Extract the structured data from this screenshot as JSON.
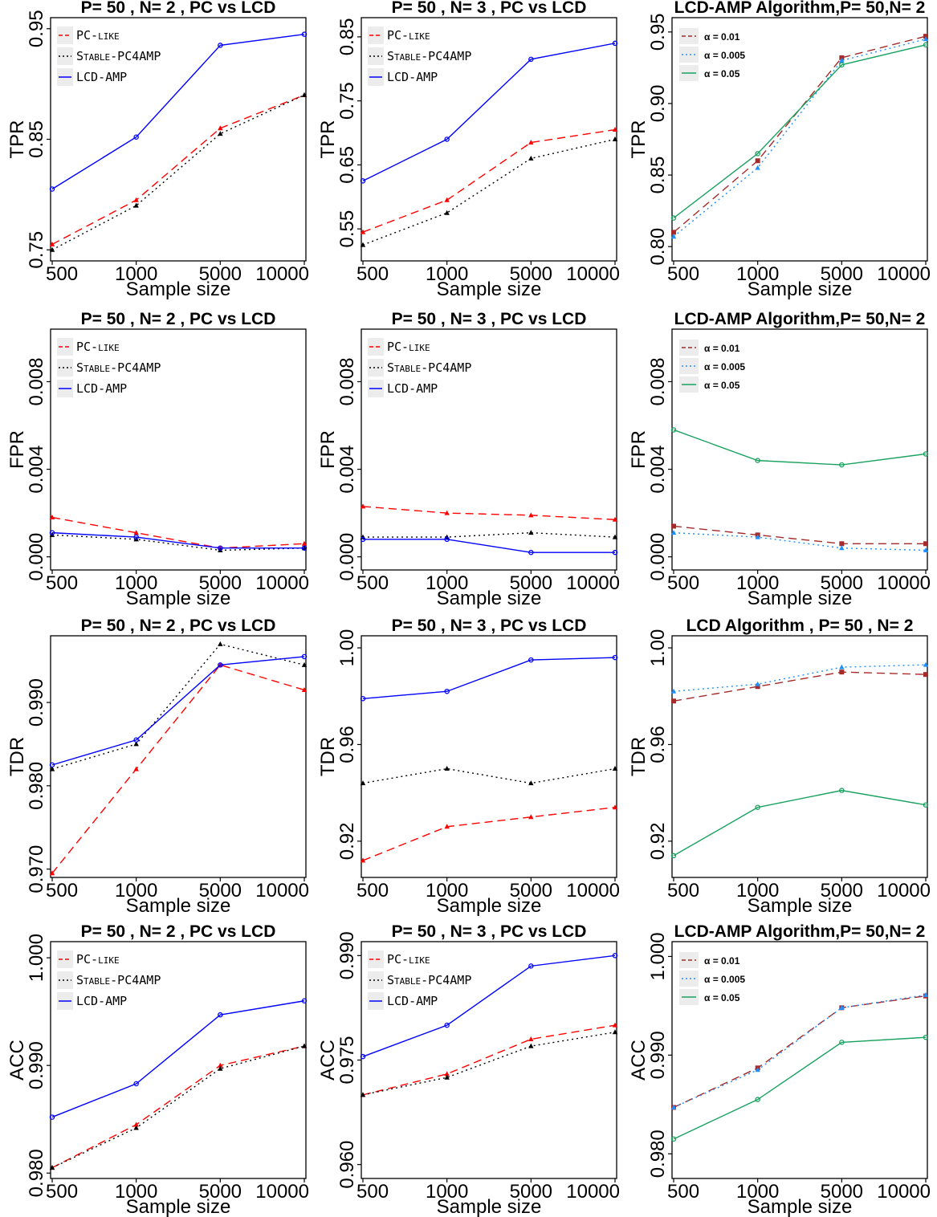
{
  "chart_data": [
    {
      "type": "line",
      "title": "P= 50 , N= 2 , PC vs LCD",
      "xlabel": "Sample size",
      "ylabel": "TPR",
      "categories": [
        "500",
        "1000",
        "5000",
        "10000"
      ],
      "ylim": [
        0.74,
        0.96
      ],
      "yticks": [
        "0.75",
        "0.85",
        "0.95"
      ],
      "legend": "top-left",
      "legend_style": "small-caps",
      "series": [
        {
          "name": "PC-like",
          "color": "#ff0000",
          "dash": "dashed",
          "marker": "triangle",
          "values": [
            0.755,
            0.795,
            0.86,
            0.89
          ]
        },
        {
          "name": "Stable-PC4AMP",
          "color": "#000000",
          "dash": "dotted",
          "marker": "triangle",
          "values": [
            0.75,
            0.79,
            0.855,
            0.89
          ]
        },
        {
          "name": "LCD-AMP",
          "color": "#0000ff",
          "dash": "solid",
          "marker": "circle",
          "values": [
            0.805,
            0.852,
            0.935,
            0.945
          ]
        }
      ]
    },
    {
      "type": "line",
      "title": "P= 50 , N= 3 , PC vs LCD",
      "xlabel": "Sample size",
      "ylabel": "TPR",
      "categories": [
        "500",
        "1000",
        "5000",
        "10000"
      ],
      "ylim": [
        0.5,
        0.88
      ],
      "yticks": [
        "0.55",
        "0.65",
        "0.75",
        "0.85"
      ],
      "legend": "top-left",
      "legend_style": "small-caps",
      "series": [
        {
          "name": "PC-like",
          "color": "#ff0000",
          "dash": "dashed",
          "marker": "triangle",
          "values": [
            0.545,
            0.595,
            0.685,
            0.705
          ]
        },
        {
          "name": "Stable-PC4AMP",
          "color": "#000000",
          "dash": "dotted",
          "marker": "triangle",
          "values": [
            0.525,
            0.575,
            0.66,
            0.69
          ]
        },
        {
          "name": "LCD-AMP",
          "color": "#0000ff",
          "dash": "solid",
          "marker": "circle",
          "values": [
            0.625,
            0.69,
            0.815,
            0.84
          ]
        }
      ]
    },
    {
      "type": "line",
      "title": "LCD-AMP Algorithm,P= 50,N= 2",
      "xlabel": "Sample size",
      "ylabel": "TPR",
      "categories": [
        "500",
        "1000",
        "5000",
        "10000"
      ],
      "ylim": [
        0.79,
        0.96
      ],
      "yticks": [
        "0.80",
        "0.85",
        "0.90",
        "0.95"
      ],
      "legend": "top-left",
      "legend_style": "alpha",
      "series": [
        {
          "name": "α = 0.01",
          "color": "#a52a2a",
          "dash": "dashed",
          "marker": "square",
          "values": [
            0.81,
            0.86,
            0.932,
            0.947
          ]
        },
        {
          "name": "α = 0.005",
          "color": "#1e90ff",
          "dash": "dotted",
          "marker": "triangle",
          "values": [
            0.807,
            0.855,
            0.93,
            0.945
          ]
        },
        {
          "name": "α = 0.05",
          "color": "#1aa260",
          "dash": "solid",
          "marker": "circle",
          "values": [
            0.82,
            0.865,
            0.927,
            0.941
          ]
        }
      ]
    },
    {
      "type": "line",
      "title": "P= 50 , N= 2 , PC vs LCD",
      "xlabel": "Sample size",
      "ylabel": "FPR",
      "categories": [
        "500",
        "1000",
        "5000",
        "10000"
      ],
      "ylim": [
        -0.0006,
        0.0104
      ],
      "yticks": [
        "0.000",
        "0.004",
        "0.008"
      ],
      "legend": "top-left",
      "legend_style": "small-caps",
      "series": [
        {
          "name": "PC-like",
          "color": "#ff0000",
          "dash": "dashed",
          "marker": "triangle",
          "values": [
            0.0018,
            0.0011,
            0.0004,
            0.0006
          ]
        },
        {
          "name": "Stable-PC4AMP",
          "color": "#000000",
          "dash": "dotted",
          "marker": "triangle",
          "values": [
            0.001,
            0.0008,
            0.0003,
            0.0004
          ]
        },
        {
          "name": "LCD-AMP",
          "color": "#0000ff",
          "dash": "solid",
          "marker": "circle",
          "values": [
            0.0011,
            0.0009,
            0.0004,
            0.0004
          ]
        }
      ]
    },
    {
      "type": "line",
      "title": "P= 50 , N= 3 , PC vs LCD",
      "xlabel": "Sample size",
      "ylabel": "FPR",
      "categories": [
        "500",
        "1000",
        "5000",
        "10000"
      ],
      "ylim": [
        -0.0006,
        0.0104
      ],
      "yticks": [
        "0.000",
        "0.004",
        "0.008"
      ],
      "legend": "top-left",
      "legend_style": "small-caps",
      "series": [
        {
          "name": "PC-like",
          "color": "#ff0000",
          "dash": "dashed",
          "marker": "triangle",
          "values": [
            0.0023,
            0.002,
            0.0019,
            0.0017
          ]
        },
        {
          "name": "Stable-PC4AMP",
          "color": "#000000",
          "dash": "dotted",
          "marker": "triangle",
          "values": [
            0.0009,
            0.0009,
            0.0011,
            0.0009
          ]
        },
        {
          "name": "LCD-AMP",
          "color": "#0000ff",
          "dash": "solid",
          "marker": "circle",
          "values": [
            0.0008,
            0.0008,
            0.0002,
            0.0002
          ]
        }
      ]
    },
    {
      "type": "line",
      "title": "LCD-AMP Algorithm,P= 50,N= 2",
      "xlabel": "Sample size",
      "ylabel": "FPR",
      "categories": [
        "500",
        "1000",
        "5000",
        "10000"
      ],
      "ylim": [
        -0.0006,
        0.0104
      ],
      "yticks": [
        "0.000",
        "0.004",
        "0.008"
      ],
      "legend": "top-left",
      "legend_style": "alpha",
      "series": [
        {
          "name": "α = 0.01",
          "color": "#a52a2a",
          "dash": "dashed",
          "marker": "square",
          "values": [
            0.0014,
            0.001,
            0.0006,
            0.0006
          ]
        },
        {
          "name": "α = 0.005",
          "color": "#1e90ff",
          "dash": "dotted",
          "marker": "triangle",
          "values": [
            0.0011,
            0.0009,
            0.0004,
            0.0003
          ]
        },
        {
          "name": "α = 0.05",
          "color": "#1aa260",
          "dash": "solid",
          "marker": "circle",
          "values": [
            0.0058,
            0.0044,
            0.0042,
            0.0047
          ]
        }
      ]
    },
    {
      "type": "line",
      "title": "P= 50 , N= 2 , PC vs LCD",
      "xlabel": "Sample size",
      "ylabel": "TDR",
      "categories": [
        "500",
        "1000",
        "5000",
        "10000"
      ],
      "ylim": [
        0.969,
        0.998
      ],
      "yticks": [
        "0.970",
        "0.980",
        "0.990"
      ],
      "legend": "none",
      "legend_style": "none",
      "series": [
        {
          "name": "PC-like",
          "color": "#ff0000",
          "dash": "dashed",
          "marker": "triangle",
          "values": [
            0.9695,
            0.982,
            0.9945,
            0.9915
          ]
        },
        {
          "name": "Stable-PC4AMP",
          "color": "#000000",
          "dash": "dotted",
          "marker": "triangle",
          "values": [
            0.982,
            0.985,
            0.997,
            0.9945
          ]
        },
        {
          "name": "LCD-AMP",
          "color": "#0000ff",
          "dash": "solid",
          "marker": "circle",
          "values": [
            0.9825,
            0.9855,
            0.9945,
            0.9955
          ]
        }
      ]
    },
    {
      "type": "line",
      "title": "P= 50 , N= 3 , PC vs LCD",
      "xlabel": "Sample size",
      "ylabel": "TDR",
      "categories": [
        "500",
        "1000",
        "5000",
        "10000"
      ],
      "ylim": [
        0.905,
        1.005
      ],
      "yticks": [
        "0.92",
        "0.96",
        "1.00"
      ],
      "legend": "none",
      "legend_style": "none",
      "series": [
        {
          "name": "PC-like",
          "color": "#ff0000",
          "dash": "dashed",
          "marker": "triangle",
          "values": [
            0.912,
            0.926,
            0.93,
            0.934
          ]
        },
        {
          "name": "Stable-PC4AMP",
          "color": "#000000",
          "dash": "dotted",
          "marker": "triangle",
          "values": [
            0.944,
            0.95,
            0.944,
            0.95
          ]
        },
        {
          "name": "LCD-AMP",
          "color": "#0000ff",
          "dash": "solid",
          "marker": "circle",
          "values": [
            0.979,
            0.982,
            0.995,
            0.996
          ]
        }
      ]
    },
    {
      "type": "line",
      "title": "LCD Algorithm , P= 50 , N= 2",
      "xlabel": "Sample size",
      "ylabel": "TDR",
      "categories": [
        "500",
        "1000",
        "5000",
        "10000"
      ],
      "ylim": [
        0.905,
        1.005
      ],
      "yticks": [
        "0.92",
        "0.96",
        "1.00"
      ],
      "legend": "none",
      "legend_style": "none",
      "series": [
        {
          "name": "α = 0.01",
          "color": "#a52a2a",
          "dash": "dashed",
          "marker": "square",
          "values": [
            0.978,
            0.984,
            0.99,
            0.989
          ]
        },
        {
          "name": "α = 0.005",
          "color": "#1e90ff",
          "dash": "dotted",
          "marker": "triangle",
          "values": [
            0.982,
            0.985,
            0.992,
            0.993
          ]
        },
        {
          "name": "α = 0.05",
          "color": "#1aa260",
          "dash": "solid",
          "marker": "circle",
          "values": [
            0.914,
            0.934,
            0.941,
            0.935
          ]
        }
      ]
    },
    {
      "type": "line",
      "title": "P= 50 , N= 2 , PC vs LCD",
      "xlabel": "Sample size",
      "ylabel": "ACC",
      "categories": [
        "500",
        "1000",
        "5000",
        "10000"
      ],
      "ylim": [
        0.9795,
        1.0015
      ],
      "yticks": [
        "0.980",
        "0.990",
        "1.000"
      ],
      "legend": "top-left",
      "legend_style": "small-caps",
      "series": [
        {
          "name": "PC-like",
          "color": "#ff0000",
          "dash": "dashed",
          "marker": "triangle",
          "values": [
            0.9805,
            0.9845,
            0.99,
            0.9918
          ]
        },
        {
          "name": "Stable-PC4AMP",
          "color": "#000000",
          "dash": "dotted",
          "marker": "triangle",
          "values": [
            0.9805,
            0.9842,
            0.9897,
            0.9918
          ]
        },
        {
          "name": "LCD-AMP",
          "color": "#0000ff",
          "dash": "solid",
          "marker": "circle",
          "values": [
            0.9852,
            0.9883,
            0.9947,
            0.996
          ]
        }
      ]
    },
    {
      "type": "line",
      "title": "P= 50 , N= 3 , PC vs LCD",
      "xlabel": "Sample size",
      "ylabel": "ACC",
      "categories": [
        "500",
        "1000",
        "5000",
        "10000"
      ],
      "ylim": [
        0.958,
        0.992
      ],
      "yticks": [
        "0.960",
        "0.975",
        "0.990"
      ],
      "legend": "top-left",
      "legend_style": "small-caps",
      "series": [
        {
          "name": "PC-like",
          "color": "#ff0000",
          "dash": "dashed",
          "marker": "triangle",
          "values": [
            0.97,
            0.973,
            0.978,
            0.98
          ]
        },
        {
          "name": "Stable-PC4AMP",
          "color": "#000000",
          "dash": "dotted",
          "marker": "triangle",
          "values": [
            0.97,
            0.9725,
            0.977,
            0.979
          ]
        },
        {
          "name": "LCD-AMP",
          "color": "#0000ff",
          "dash": "solid",
          "marker": "circle",
          "values": [
            0.9755,
            0.98,
            0.9885,
            0.99
          ]
        }
      ]
    },
    {
      "type": "line",
      "title": "LCD-AMP Algorithm,P= 50,N= 2",
      "xlabel": "Sample size",
      "ylabel": "ACC",
      "categories": [
        "500",
        "1000",
        "5000",
        "10000"
      ],
      "ylim": [
        0.9775,
        1.0015
      ],
      "yticks": [
        "0.980",
        "0.990",
        "1.000"
      ],
      "legend": "top-left",
      "legend_style": "alpha",
      "series": [
        {
          "name": "α = 0.01",
          "color": "#a52a2a",
          "dash": "dashed",
          "marker": "square",
          "values": [
            0.9847,
            0.9887,
            0.9948,
            0.996
          ]
        },
        {
          "name": "α = 0.005",
          "color": "#1e90ff",
          "dash": "dotted",
          "marker": "triangle",
          "values": [
            0.9847,
            0.9885,
            0.9948,
            0.9961
          ]
        },
        {
          "name": "α = 0.05",
          "color": "#1aa260",
          "dash": "solid",
          "marker": "circle",
          "values": [
            0.9815,
            0.9855,
            0.9913,
            0.9918
          ]
        }
      ]
    }
  ]
}
